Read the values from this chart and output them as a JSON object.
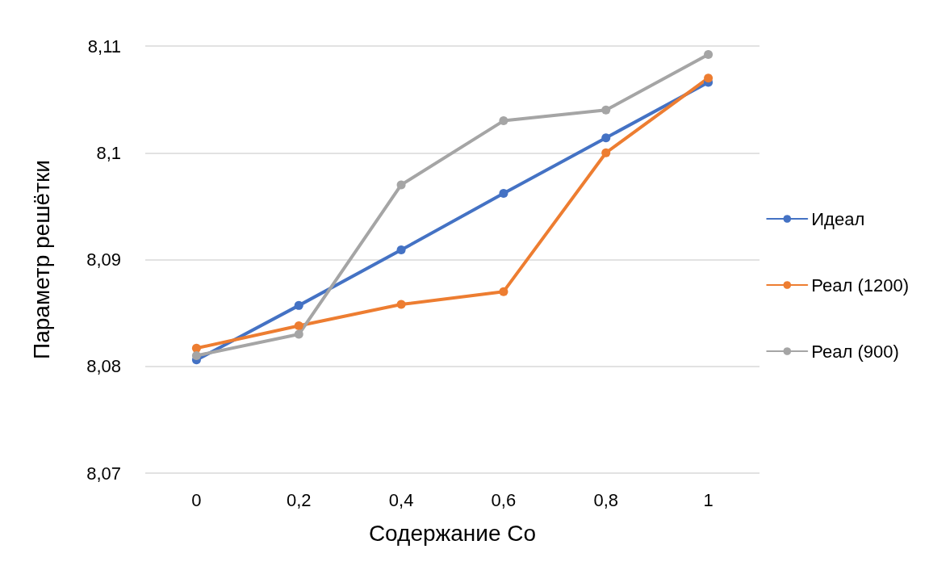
{
  "chart_data": {
    "type": "line",
    "xlabel": "Содержание Co",
    "ylabel": "Параметр решётки",
    "categories": [
      "0",
      "0,2",
      "0,4",
      "0,6",
      "0,8",
      "1"
    ],
    "series": [
      {
        "name": "Идеал",
        "color": "#4472c4",
        "values": [
          8.0806,
          8.0857,
          8.0909,
          8.0962,
          8.1014,
          8.1066
        ]
      },
      {
        "name": "Реал (1200)",
        "color": "#ed7d31",
        "values": [
          8.0817,
          8.0838,
          8.0858,
          8.087,
          8.1,
          8.107
        ]
      },
      {
        "name": "Реал (900)",
        "color": "#a5a5a5",
        "values": [
          8.081,
          8.083,
          8.097,
          8.103,
          8.104,
          8.1092
        ]
      }
    ],
    "ylim": [
      8.07,
      8.11
    ],
    "yticks": [
      {
        "value": 8.07,
        "label": "8,07"
      },
      {
        "value": 8.08,
        "label": "8,08"
      },
      {
        "value": 8.09,
        "label": "8,09"
      },
      {
        "value": 8.1,
        "label": "8,1"
      },
      {
        "value": 8.11,
        "label": "8,11"
      }
    ],
    "grid": "y",
    "legend": "right",
    "marker": "circle",
    "line_style": "solid"
  }
}
